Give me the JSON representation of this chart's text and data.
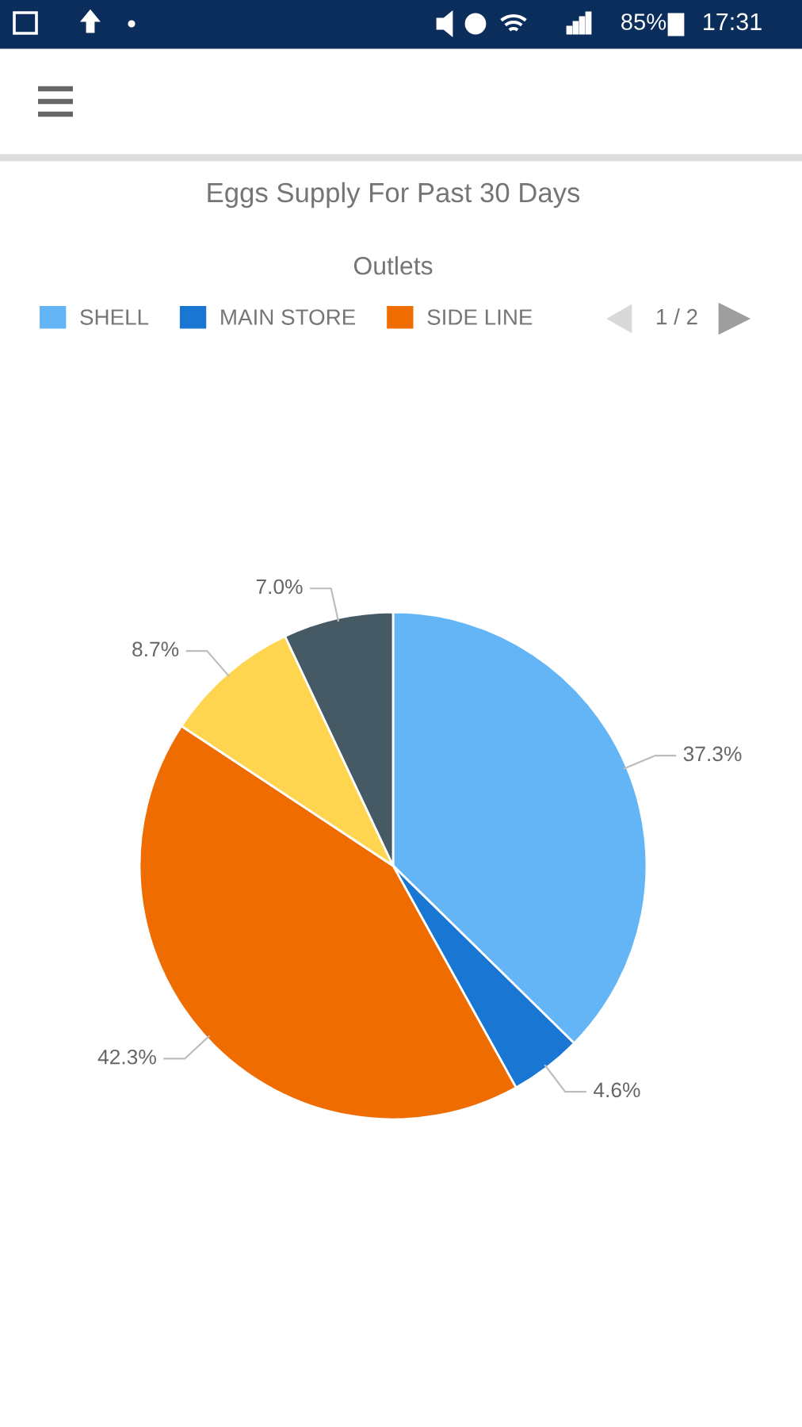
{
  "chart_data": {
    "type": "pie",
    "title": "Eggs Supply For Past 30 Days",
    "legend_title": "Outlets",
    "categories": [
      "SHELL",
      "MAIN STORE",
      "SIDE LINE",
      null,
      null
    ],
    "values": [
      37.3,
      4.6,
      42.3,
      8.7,
      7.0
    ],
    "colors": [
      "#64b5f6",
      "#1976d2",
      "#ef6c00",
      "#ffd54f",
      "#455a64"
    ],
    "value_labels": [
      "37.3%",
      "4.6%",
      "42.3%",
      "8.7%",
      "7.0%"
    ],
    "legend": "top",
    "annotations": [
      "1 / 2",
      "85%",
      "17:31"
    ]
  }
}
